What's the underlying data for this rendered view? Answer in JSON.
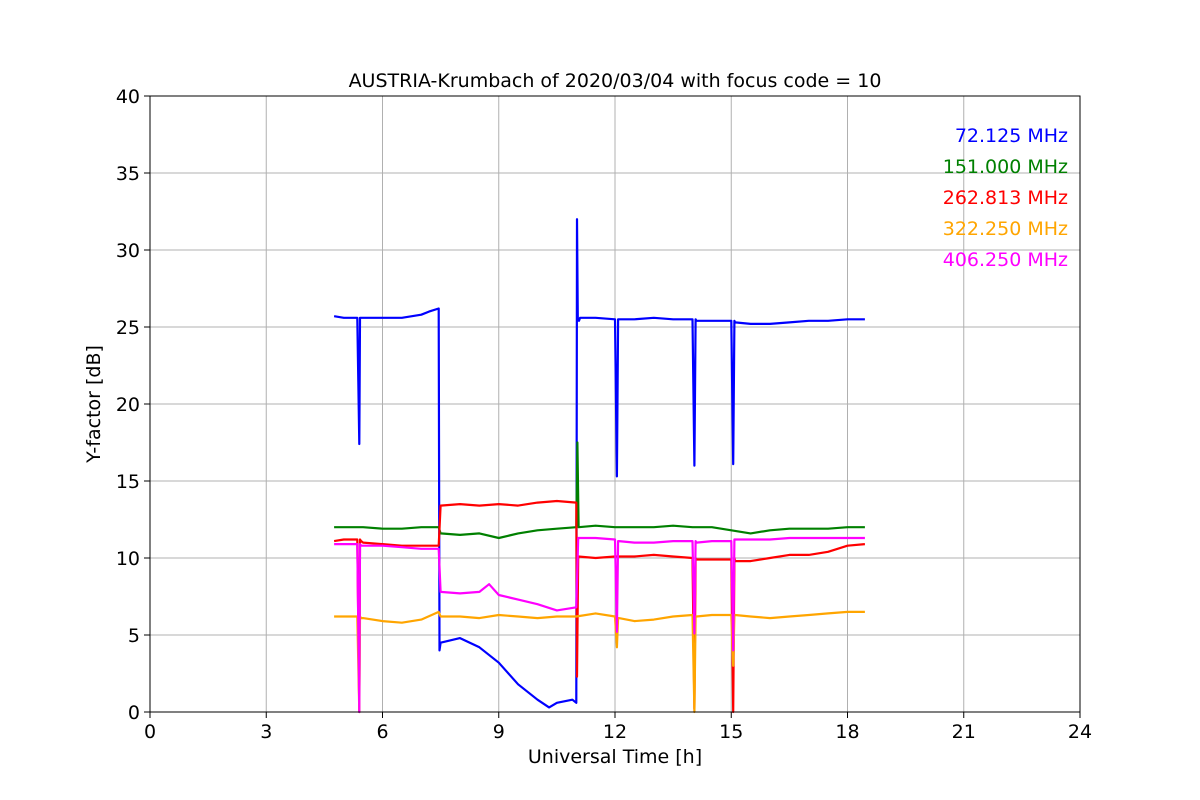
{
  "chart_data": {
    "type": "line",
    "title": "AUSTRIA-Krumbach of 2020/03/04 with focus code = 10",
    "xlabel": "Universal Time [h]",
    "ylabel": "Y-factor [dB]",
    "xlim": [
      0,
      24
    ],
    "ylim": [
      0,
      40
    ],
    "xticks": [
      0,
      3,
      6,
      9,
      12,
      15,
      18,
      21,
      24
    ],
    "yticks": [
      0,
      5,
      10,
      15,
      20,
      25,
      30,
      35,
      40
    ],
    "grid": true,
    "legend_position": "top-right",
    "series": [
      {
        "name": "72.125 MHz",
        "color": "#0000ff",
        "x": [
          4.75,
          5.0,
          5.35,
          5.4,
          5.42,
          5.45,
          5.5,
          6.0,
          6.5,
          7.0,
          7.2,
          7.45,
          7.47,
          7.5,
          8.0,
          8.5,
          9.0,
          9.5,
          10.0,
          10.3,
          10.5,
          10.9,
          11.0,
          11.02,
          11.04,
          11.07,
          11.1,
          11.5,
          12.0,
          12.05,
          12.08,
          12.1,
          12.5,
          13.0,
          13.5,
          14.0,
          14.05,
          14.08,
          14.1,
          14.5,
          15.0,
          15.05,
          15.08,
          15.1,
          15.5,
          16.0,
          16.5,
          17.0,
          17.5,
          18.0,
          18.45
        ],
        "y": [
          25.7,
          25.6,
          25.6,
          17.4,
          25.6,
          25.6,
          25.6,
          25.6,
          25.6,
          25.8,
          26.0,
          26.2,
          4.0,
          4.5,
          4.8,
          4.2,
          3.2,
          1.8,
          0.8,
          0.3,
          0.6,
          0.8,
          0.6,
          32.0,
          25.5,
          25.4,
          25.6,
          25.6,
          25.5,
          15.3,
          25.5,
          25.5,
          25.5,
          25.6,
          25.5,
          25.5,
          16.0,
          25.5,
          25.4,
          25.4,
          25.4,
          16.1,
          25.4,
          25.3,
          25.2,
          25.2,
          25.3,
          25.4,
          25.4,
          25.5,
          25.5
        ]
      },
      {
        "name": "151.000 MHz",
        "color": "#008000",
        "x": [
          4.75,
          5.0,
          5.5,
          6.0,
          6.5,
          7.0,
          7.45,
          7.5,
          8.0,
          8.5,
          9.0,
          9.5,
          10.0,
          10.5,
          11.0,
          11.03,
          11.06,
          11.5,
          12.0,
          12.5,
          13.0,
          13.5,
          14.0,
          14.5,
          15.0,
          15.5,
          16.0,
          16.5,
          17.0,
          17.5,
          18.0,
          18.45
        ],
        "y": [
          12.0,
          12.0,
          12.0,
          11.9,
          11.9,
          12.0,
          12.0,
          11.6,
          11.5,
          11.6,
          11.3,
          11.6,
          11.8,
          11.9,
          12.0,
          17.5,
          12.0,
          12.1,
          12.0,
          12.0,
          12.0,
          12.1,
          12.0,
          12.0,
          11.8,
          11.6,
          11.8,
          11.9,
          11.9,
          11.9,
          12.0,
          12.0
        ]
      },
      {
        "name": "262.813 MHz",
        "color": "#ff0000",
        "x": [
          4.75,
          5.0,
          5.35,
          5.4,
          5.42,
          5.45,
          5.5,
          6.0,
          6.5,
          7.0,
          7.45,
          7.5,
          8.0,
          8.5,
          9.0,
          9.5,
          10.0,
          10.5,
          11.0,
          11.02,
          11.05,
          11.5,
          12.0,
          12.5,
          13.0,
          13.5,
          14.0,
          14.05,
          14.08,
          14.1,
          14.5,
          15.0,
          15.05,
          15.08,
          15.1,
          15.5,
          16.0,
          16.5,
          17.0,
          17.5,
          18.0,
          18.45
        ],
        "y": [
          11.1,
          11.2,
          11.2,
          0.0,
          11.2,
          11.1,
          11.0,
          10.9,
          10.8,
          10.8,
          10.8,
          13.4,
          13.5,
          13.4,
          13.5,
          13.4,
          13.6,
          13.7,
          13.6,
          2.3,
          10.1,
          10.0,
          10.1,
          10.1,
          10.2,
          10.1,
          10.0,
          0.2,
          10.0,
          9.9,
          9.9,
          9.9,
          0.0,
          10.0,
          9.8,
          9.8,
          10.0,
          10.2,
          10.2,
          10.4,
          10.8,
          10.9
        ]
      },
      {
        "name": "322.250 MHz",
        "color": "#ffa500",
        "x": [
          4.75,
          5.0,
          5.35,
          5.4,
          5.42,
          5.45,
          5.5,
          6.0,
          6.5,
          7.0,
          7.45,
          7.5,
          8.0,
          8.5,
          9.0,
          9.5,
          10.0,
          10.5,
          11.0,
          11.5,
          12.0,
          12.05,
          12.08,
          12.1,
          12.5,
          13.0,
          13.5,
          14.0,
          14.05,
          14.08,
          14.1,
          14.5,
          15.0,
          15.05,
          15.08,
          15.1,
          15.5,
          16.0,
          16.5,
          17.0,
          17.5,
          18.0,
          18.45
        ],
        "y": [
          6.2,
          6.2,
          6.2,
          0.0,
          6.2,
          6.1,
          6.1,
          5.9,
          5.8,
          6.0,
          6.5,
          6.2,
          6.2,
          6.1,
          6.3,
          6.2,
          6.1,
          6.2,
          6.2,
          6.4,
          6.2,
          4.2,
          6.1,
          6.1,
          5.9,
          6.0,
          6.2,
          6.3,
          0.0,
          6.2,
          6.2,
          6.3,
          6.3,
          3.0,
          6.3,
          6.3,
          6.2,
          6.1,
          6.2,
          6.3,
          6.4,
          6.5,
          6.5
        ]
      },
      {
        "name": "406.250 MHz",
        "color": "#ff00ff",
        "x": [
          4.75,
          5.0,
          5.35,
          5.4,
          5.42,
          5.45,
          5.5,
          6.0,
          6.5,
          7.0,
          7.45,
          7.5,
          8.0,
          8.5,
          8.75,
          9.0,
          9.5,
          10.0,
          10.5,
          11.0,
          11.05,
          11.5,
          12.0,
          12.05,
          12.08,
          12.1,
          12.5,
          13.0,
          13.5,
          14.0,
          14.05,
          14.08,
          14.1,
          14.5,
          15.0,
          15.05,
          15.08,
          15.1,
          15.5,
          16.0,
          16.5,
          17.0,
          17.5,
          18.0,
          18.45
        ],
        "y": [
          10.9,
          10.9,
          10.9,
          0.0,
          10.9,
          10.8,
          10.8,
          10.8,
          10.7,
          10.6,
          10.6,
          7.8,
          7.7,
          7.8,
          8.3,
          7.6,
          7.3,
          7.0,
          6.6,
          6.8,
          11.3,
          11.3,
          11.2,
          5.2,
          11.1,
          11.1,
          11.0,
          11.0,
          11.1,
          11.1,
          5.1,
          11.1,
          11.0,
          11.1,
          11.1,
          4.0,
          11.2,
          11.2,
          11.2,
          11.2,
          11.3,
          11.3,
          11.3,
          11.3,
          11.3
        ]
      }
    ]
  }
}
